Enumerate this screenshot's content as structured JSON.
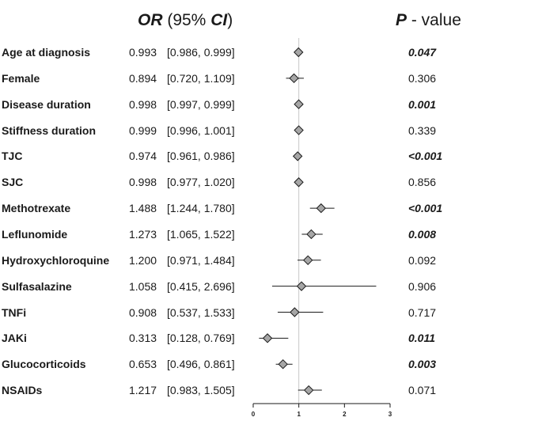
{
  "header": {
    "or_label": "OR",
    "ci_open": " (95% ",
    "ci_label": "CI",
    "ci_close": ")",
    "p_label": "P",
    "p_suffix": " - value"
  },
  "chart_data": {
    "type": "forest",
    "reference_line": 1,
    "xlim": [
      0,
      3
    ],
    "x_ticks": [
      "0",
      "1",
      "2",
      "3"
    ],
    "marker_color": "#a6a6a6",
    "rows": [
      {
        "label": "Age at diagnosis",
        "or_text": "0.993",
        "ci_text": "[0.986, 0.999]",
        "or": 0.993,
        "lo": 0.986,
        "hi": 0.999,
        "p_text": "0.047",
        "significant": true
      },
      {
        "label": "Female",
        "or_text": "0.894",
        "ci_text": "[0.720, 1.109]",
        "or": 0.894,
        "lo": 0.72,
        "hi": 1.109,
        "p_text": "0.306",
        "significant": false
      },
      {
        "label": "Disease duration",
        "or_text": "0.998",
        "ci_text": "[0.997, 0.999]",
        "or": 0.998,
        "lo": 0.997,
        "hi": 0.999,
        "p_text": "0.001",
        "significant": true
      },
      {
        "label": "Stiffness duration",
        "or_text": "0.999",
        "ci_text": "[0.996, 1.001]",
        "or": 0.999,
        "lo": 0.996,
        "hi": 1.001,
        "p_text": "0.339",
        "significant": false
      },
      {
        "label": "TJC",
        "or_text": "0.974",
        "ci_text": "[0.961, 0.986]",
        "or": 0.974,
        "lo": 0.961,
        "hi": 0.986,
        "p_text": "<0.001",
        "significant": true
      },
      {
        "label": "SJC",
        "or_text": "0.998",
        "ci_text": "[0.977, 1.020]",
        "or": 0.998,
        "lo": 0.977,
        "hi": 1.02,
        "p_text": "0.856",
        "significant": false
      },
      {
        "label": "Methotrexate",
        "or_text": "1.488",
        "ci_text": "[1.244, 1.780]",
        "or": 1.488,
        "lo": 1.244,
        "hi": 1.78,
        "p_text": "<0.001",
        "significant": true
      },
      {
        "label": "Leflunomide",
        "or_text": "1.273",
        "ci_text": "[1.065, 1.522]",
        "or": 1.273,
        "lo": 1.065,
        "hi": 1.522,
        "p_text": "0.008",
        "significant": true
      },
      {
        "label": "Hydroxychloroquine",
        "or_text": "1.200",
        "ci_text": "[0.971, 1.484]",
        "or": 1.2,
        "lo": 0.971,
        "hi": 1.484,
        "p_text": "0.092",
        "significant": false
      },
      {
        "label": "Sulfasalazine",
        "or_text": "1.058",
        "ci_text": "[0.415, 2.696]",
        "or": 1.058,
        "lo": 0.415,
        "hi": 2.696,
        "p_text": "0.906",
        "significant": false
      },
      {
        "label": "TNFi",
        "or_text": "0.908",
        "ci_text": "[0.537, 1.533]",
        "or": 0.908,
        "lo": 0.537,
        "hi": 1.533,
        "p_text": "0.717",
        "significant": false
      },
      {
        "label": "JAKi",
        "or_text": "0.313",
        "ci_text": "[0.128, 0.769]",
        "or": 0.313,
        "lo": 0.128,
        "hi": 0.769,
        "p_text": "0.011",
        "significant": true
      },
      {
        "label": "Glucocorticoids",
        "or_text": "0.653",
        "ci_text": "[0.496, 0.861]",
        "or": 0.653,
        "lo": 0.496,
        "hi": 0.861,
        "p_text": "0.003",
        "significant": true
      },
      {
        "label": "NSAIDs",
        "or_text": "1.217",
        "ci_text": "[0.983, 1.505]",
        "or": 1.217,
        "lo": 0.983,
        "hi": 1.505,
        "p_text": "0.071",
        "significant": false
      }
    ]
  }
}
